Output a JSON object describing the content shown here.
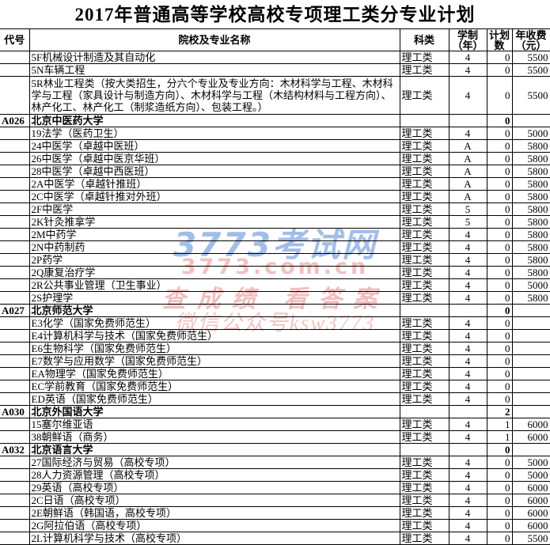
{
  "title": "2017年普通高等学校高校专项理工类分专业计划",
  "watermark": {
    "site": "3773考试网",
    "url": "3773.com.cn",
    "slogan": "查成绩 看答案",
    "wechat": "微信公众号ksw3773",
    "blue_color": "#6a94db",
    "pink_color": "#e78c8c"
  },
  "accent": {
    "header_underline_green": "#7d9f6d",
    "border_black": "#000000"
  },
  "table": {
    "headers": {
      "code": "代号",
      "name": "院校及专业名称",
      "category": "科类",
      "duration_line1": "学制",
      "duration_line2": "（年）",
      "plan_line1": "计划",
      "plan_line2": "数",
      "fee_line1": "年收费",
      "fee_line2": "（元）"
    },
    "rows": [
      {
        "type": "major",
        "code": "",
        "name": "5F机械设计制造及其自动化",
        "category": "理工类",
        "years": "4",
        "plan": "0",
        "fee": "5500"
      },
      {
        "type": "major",
        "code": "",
        "name": "5N车辆工程",
        "category": "理工类",
        "years": "4",
        "plan": "0",
        "fee": "5500"
      },
      {
        "type": "major",
        "wrap": true,
        "code": "",
        "name": "5R林业工程类（按大类招生，分六个专业及专业方向：木材科学与工程、木材科学与工程（家具设计与制造方向）、木材科学与工程（木结构材料与工程方向）、林产化工、林产化工（制浆造纸方向）、包装工程。）",
        "category": "理工类",
        "years": "4",
        "plan": "0",
        "fee": "5500"
      },
      {
        "type": "university",
        "code": "A026",
        "name": "北京中医药大学",
        "category": "",
        "years": "",
        "plan": "0",
        "fee": ""
      },
      {
        "type": "major",
        "code": "",
        "name": "19法学（医药卫生）",
        "category": "理工类",
        "years": "4",
        "plan": "0",
        "fee": "5000"
      },
      {
        "type": "major",
        "code": "",
        "name": "24中医学（卓越中医班）",
        "category": "理工类",
        "years": "A",
        "plan": "0",
        "fee": "5800"
      },
      {
        "type": "major",
        "code": "",
        "name": "26中医学（卓越中医京华班）",
        "category": "理工类",
        "years": "A",
        "plan": "0",
        "fee": "5800"
      },
      {
        "type": "major",
        "code": "",
        "name": "28中医学（卓越中西医班）",
        "category": "理工类",
        "years": "A",
        "plan": "0",
        "fee": "5800"
      },
      {
        "type": "major",
        "code": "",
        "name": "2A中医学（卓越针推班）",
        "category": "理工类",
        "years": "A",
        "plan": "0",
        "fee": "5800"
      },
      {
        "type": "major",
        "code": "",
        "name": "2C中医学（卓越针推对外班）",
        "category": "理工类",
        "years": "A",
        "plan": "0",
        "fee": "5800"
      },
      {
        "type": "major",
        "code": "",
        "name": "2F中医学",
        "category": "理工类",
        "years": "5",
        "plan": "0",
        "fee": "5800"
      },
      {
        "type": "major",
        "code": "",
        "name": "2K针灸推拿学",
        "category": "理工类",
        "years": "5",
        "plan": "0",
        "fee": "5800"
      },
      {
        "type": "major",
        "code": "",
        "name": "2M中药学",
        "category": "理工类",
        "years": "4",
        "plan": "0",
        "fee": "5800"
      },
      {
        "type": "major",
        "code": "",
        "name": "2N中药制药",
        "category": "理工类",
        "years": "4",
        "plan": "0",
        "fee": "5800"
      },
      {
        "type": "major",
        "code": "",
        "name": "2P药学",
        "category": "理工类",
        "years": "4",
        "plan": "0",
        "fee": "5800"
      },
      {
        "type": "major",
        "code": "",
        "name": "2Q康复治疗学",
        "category": "理工类",
        "years": "4",
        "plan": "0",
        "fee": "5800"
      },
      {
        "type": "major",
        "code": "",
        "name": "2R公共事业管理（卫生事业）",
        "category": "理工类",
        "years": "4",
        "plan": "0",
        "fee": "5000"
      },
      {
        "type": "major",
        "code": "",
        "name": "2S护理学",
        "category": "理工类",
        "years": "4",
        "plan": "0",
        "fee": "5800"
      },
      {
        "type": "university",
        "code": "A027",
        "name": "北京师范大学",
        "category": "",
        "years": "",
        "plan": "0",
        "fee": ""
      },
      {
        "type": "major",
        "code": "",
        "name": "E3化学（国家免费师范生）",
        "category": "理工类",
        "years": "4",
        "plan": "0",
        "fee": ""
      },
      {
        "type": "major",
        "code": "",
        "name": "E4计算机科学与技术（国家免费师范生）",
        "category": "理工类",
        "years": "4",
        "plan": "0",
        "fee": ""
      },
      {
        "type": "major",
        "code": "",
        "name": "E6生物科学（国家免费师范生）",
        "category": "理工类",
        "years": "4",
        "plan": "0",
        "fee": ""
      },
      {
        "type": "major",
        "code": "",
        "name": "E7数学与应用数学（国家免费师范生）",
        "category": "理工类",
        "years": "4",
        "plan": "0",
        "fee": ""
      },
      {
        "type": "major",
        "code": "",
        "name": "EA物理学（国家免费师范生）",
        "category": "理工类",
        "years": "4",
        "plan": "0",
        "fee": ""
      },
      {
        "type": "major",
        "code": "",
        "name": "EC学前教育（国家免费师范生）",
        "category": "理工类",
        "years": "4",
        "plan": "0",
        "fee": ""
      },
      {
        "type": "major",
        "code": "",
        "name": "ED英语（国家免费师范生）",
        "category": "理工类",
        "years": "4",
        "plan": "0",
        "fee": ""
      },
      {
        "type": "university",
        "code": "A030",
        "name": "北京外国语大学",
        "category": "",
        "years": "",
        "plan": "2",
        "fee": ""
      },
      {
        "type": "major",
        "code": "",
        "name": "15塞尔维亚语",
        "category": "理工类",
        "years": "4",
        "plan": "1",
        "fee": "6000"
      },
      {
        "type": "major",
        "code": "",
        "name": "38朝鲜语（商务）",
        "category": "理工类",
        "years": "4",
        "plan": "1",
        "fee": "6000"
      },
      {
        "type": "university",
        "code": "A032",
        "name": "北京语言大学",
        "category": "",
        "years": "",
        "plan": "0",
        "fee": ""
      },
      {
        "type": "major",
        "code": "",
        "name": "27国际经济与贸易（高校专项）",
        "category": "理工类",
        "years": "4",
        "plan": "0",
        "fee": "5000"
      },
      {
        "type": "major",
        "code": "",
        "name": "28人力资源管理（高校专项）",
        "category": "理工类",
        "years": "4",
        "plan": "0",
        "fee": "5000"
      },
      {
        "type": "major",
        "code": "",
        "name": "29英语（高校专项）",
        "category": "理工类",
        "years": "4",
        "plan": "0",
        "fee": "6000"
      },
      {
        "type": "major",
        "code": "",
        "name": "2C日语（高校专项）",
        "category": "理工类",
        "years": "4",
        "plan": "0",
        "fee": "6000"
      },
      {
        "type": "major",
        "code": "",
        "name": "2E朝鲜语（韩国语，高校专项）",
        "category": "理工类",
        "years": "4",
        "plan": "0",
        "fee": "6000"
      },
      {
        "type": "major",
        "code": "",
        "name": "2G阿拉伯语（高校专项）",
        "category": "理工类",
        "years": "4",
        "plan": "0",
        "fee": "6000"
      },
      {
        "type": "major",
        "code": "",
        "name": "2L计算机科学与技术（高校专项）",
        "category": "理工类",
        "years": "4",
        "plan": "0",
        "fee": "5500"
      }
    ]
  }
}
